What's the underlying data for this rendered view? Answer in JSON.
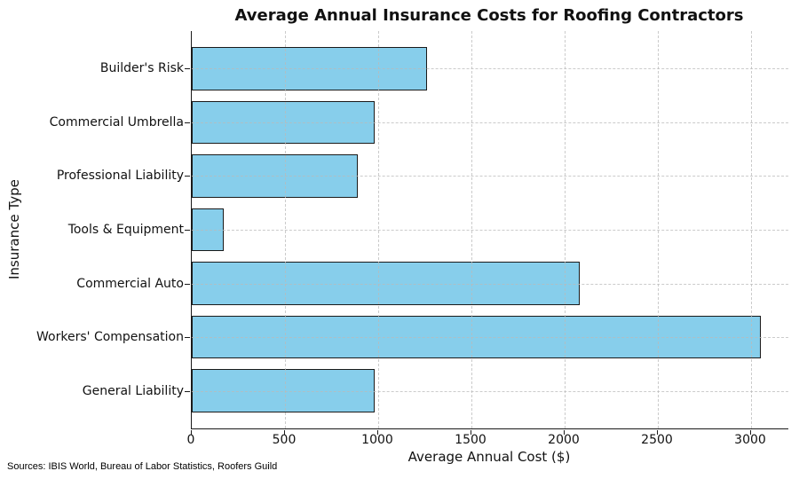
{
  "chart_data": {
    "type": "bar",
    "orientation": "horizontal",
    "title": "Average Annual Insurance Costs for Roofing Contractors",
    "xlabel": "Average Annual Cost ($)",
    "ylabel": "Insurance Type",
    "categories_top_to_bottom": [
      "Builder's Risk",
      "Commercial Umbrella",
      "Professional Liability",
      "Tools & Equipment",
      "Commercial Auto",
      "Workers' Compensation",
      "General Liability"
    ],
    "values_top_to_bottom": [
      1260,
      980,
      890,
      170,
      2080,
      3050,
      980
    ],
    "xticks": [
      0,
      500,
      1000,
      1500,
      2000,
      2500,
      3000
    ],
    "xlim": [
      0,
      3200
    ],
    "grid": "dashed",
    "legend": "none",
    "bar_color": "#87CEEB",
    "bar_edge_color": "#1a1a1a"
  },
  "footer": {
    "sources": "Sources: IBIS World, Bureau of Labor Statistics, Roofers Guild"
  }
}
